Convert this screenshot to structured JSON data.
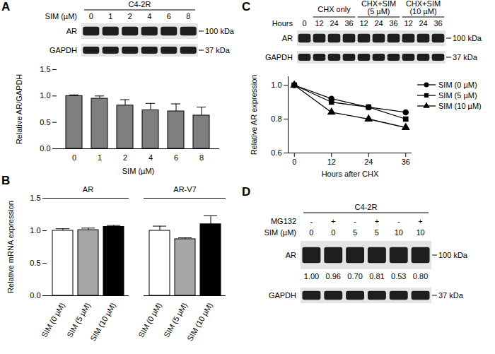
{
  "chart_data": [
    {
      "type": "bar",
      "categories": [
        "0",
        "1",
        "2",
        "4",
        "6",
        "8"
      ],
      "values": [
        1.0,
        0.95,
        0.82,
        0.73,
        0.71,
        0.63
      ],
      "errors": [
        0.02,
        0.05,
        0.11,
        0.13,
        0.14,
        0.16
      ],
      "color": "#7f7f7f",
      "x_label": "SIM (µM)",
      "y_label": "Relative AR/GAPDH",
      "ylim": [
        0,
        1.5
      ],
      "yticks": [
        {
          "value": 0,
          "label": "0.0"
        },
        0.5,
        {
          "value": 1,
          "label": "1.0"
        },
        1.5
      ],
      "grid": false
    },
    {
      "panel": "B",
      "type": "bar",
      "categories": [
        "SIM (0 µM)",
        "SIM (5 µM)",
        "SIM (10 µM)"
      ],
      "colors": [
        "#ffffff",
        "#a6a6a6",
        "#000000"
      ],
      "series": [
        {
          "name": "AR",
          "values": [
            1.0,
            1.01,
            1.06
          ],
          "errors": [
            0.03,
            0.03,
            0.02
          ]
        },
        {
          "name": "AR-V7",
          "values": [
            1.0,
            0.87,
            1.1
          ],
          "errors": [
            0.07,
            0.02,
            0.13
          ]
        }
      ],
      "y_label": "Relative mRNA expression",
      "ylim": [
        0,
        1.5
      ],
      "yticks": [
        {
          "value": 0,
          "label": "0.0"
        },
        0.5,
        {
          "value": 1,
          "label": "1.0"
        },
        1.5
      ],
      "grid": false
    },
    {
      "type": "line",
      "x": [
        0,
        12,
        24,
        36
      ],
      "series": [
        {
          "name": "SIM (0 µM)",
          "color": "#000000",
          "marker": "circle",
          "line_style": "solid",
          "values": [
            1.0,
            0.92,
            0.87,
            0.84
          ]
        },
        {
          "name": "SIM (5 µM)",
          "color": "#000000",
          "marker": "square",
          "line_style": "solid",
          "values": [
            1.0,
            0.9,
            0.87,
            0.8
          ]
        },
        {
          "name": "SIM (10 µM)",
          "color": "#000000",
          "marker": "triangle",
          "line_style": "solid",
          "values": [
            1.0,
            0.84,
            0.8,
            0.75
          ]
        }
      ],
      "x_label": "Hours after CHX",
      "y_label": "Relative AR expression",
      "xlim": [
        -2,
        38
      ],
      "xticks": [
        0,
        12,
        24,
        36
      ],
      "ylim": [
        0.6,
        1.05
      ],
      "yticks": [
        0.6,
        0.8,
        {
          "value": 1,
          "label": "1.0"
        }
      ],
      "legend": "right",
      "grid": false
    }
  ],
  "blots": [
    {
      "panel": "A",
      "header": "C4-2R",
      "conditions": [
        {
          "label": "SIM (µM)",
          "lanes": [
            "0",
            "1",
            "2",
            "4",
            "6",
            "8"
          ]
        }
      ],
      "rows": [
        {
          "label": "AR",
          "size": "100 kDa"
        },
        {
          "label": "GAPDH",
          "size": "37 kDa"
        }
      ]
    },
    {
      "panel": "C",
      "groups": [
        {
          "label": "CHX only",
          "from": 1,
          "to": 3
        },
        {
          "label": "CHX+SIM (5 µM)",
          "from": 4,
          "to": 6
        },
        {
          "label": "CHX+SIM (10 µM)",
          "from": 7,
          "to": 9
        }
      ],
      "conditions": [
        {
          "label": "Hours",
          "lanes": [
            "0",
            "12",
            "24",
            "36",
            "12",
            "24",
            "36",
            "12",
            "24",
            "36"
          ]
        }
      ],
      "rows": [
        {
          "label": "AR",
          "size": "100 kDa"
        },
        {
          "label": "GAPDH",
          "size": "37 kDa"
        }
      ]
    },
    {
      "panel": "D",
      "header": "C4-2R",
      "conditions": [
        {
          "label": "MG132",
          "lanes": [
            "-",
            "+",
            "-",
            "+",
            "-",
            "+"
          ]
        },
        {
          "label": "SIM (µM)",
          "lanes": [
            "0",
            "0",
            "5",
            "5",
            "10",
            "10"
          ]
        }
      ],
      "rows": [
        {
          "label": "AR",
          "size": "100 kDa",
          "quantification": [
            "1.00",
            "0.96",
            "0.70",
            "0.81",
            "0.53",
            "0.80"
          ]
        },
        {
          "label": "GAPDH",
          "size": "37 kDa"
        }
      ]
    }
  ]
}
